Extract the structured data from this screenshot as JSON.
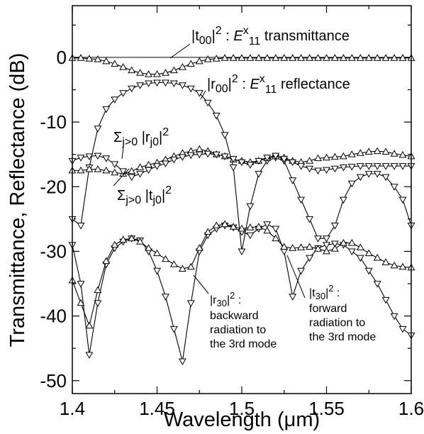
{
  "chart_data": {
    "type": "line",
    "xlabel": "Wavelength (μm)",
    "ylabel": "Transmittance, Reflectance (dB)",
    "xlim": [
      1.4,
      1.6
    ],
    "ylim": [
      -52,
      8
    ],
    "xticks": [
      "1.4",
      "1.45",
      "1.5",
      "1.55",
      "1.6"
    ],
    "yticks": [
      "0",
      "-10",
      "-20",
      "-30",
      "-40",
      "-50"
    ],
    "grid": false,
    "legend": "none",
    "series": [
      {
        "marker": "triangle-up",
        "x": [
          1.4,
          1.405,
          1.41,
          1.415,
          1.42,
          1.425,
          1.43,
          1.435,
          1.44,
          1.445,
          1.45,
          1.455,
          1.46,
          1.465,
          1.47,
          1.475,
          1.48,
          1.485,
          1.49,
          1.495,
          1.5,
          1.505,
          1.51,
          1.515,
          1.52,
          1.525,
          1.53,
          1.535,
          1.54,
          1.545,
          1.55,
          1.555,
          1.56,
          1.565,
          1.57,
          1.575,
          1.58,
          1.585,
          1.59,
          1.595,
          1.6
        ],
        "values": [
          -0.1,
          -0.1,
          -0.2,
          -0.3,
          -0.6,
          -1,
          -1.5,
          -2,
          -2.4,
          -2.6,
          -2.6,
          -2.4,
          -2,
          -1.5,
          -1,
          -0.6,
          -0.3,
          -0.2,
          -0.1,
          -0.1,
          -0.1,
          -0.1,
          -0.1,
          -0.1,
          -0.1,
          -0.1,
          -0.1,
          -0.1,
          -0.1,
          -0.1,
          -0.1,
          -0.1,
          -0.1,
          -0.1,
          -0.1,
          -0.1,
          -0.1,
          -0.1,
          -0.1,
          -0.1,
          -0.1
        ]
      },
      {
        "marker": "triangle-down",
        "x": [
          1.4,
          1.405,
          1.41,
          1.415,
          1.42,
          1.425,
          1.43,
          1.435,
          1.44,
          1.445,
          1.45,
          1.455,
          1.46,
          1.465,
          1.47,
          1.475,
          1.48,
          1.485,
          1.49,
          1.495,
          1.5,
          1.505,
          1.51,
          1.515,
          1.52,
          1.525,
          1.53,
          1.535,
          1.54,
          1.545,
          1.55,
          1.555,
          1.56,
          1.565,
          1.57,
          1.575,
          1.58,
          1.585,
          1.59,
          1.595,
          1.6
        ],
        "values": [
          -25,
          -26,
          -17,
          -11,
          -8,
          -6.5,
          -5.5,
          -4.8,
          -4.3,
          -4,
          -3.9,
          -3.9,
          -4,
          -4.3,
          -4.8,
          -5.5,
          -7,
          -9,
          -12,
          -17,
          -30,
          -23,
          -18,
          -16,
          -15.5,
          -16,
          -19,
          -22,
          -25,
          -28,
          -28,
          -26,
          -22,
          -19.5,
          -18.5,
          -18,
          -18,
          -18.5,
          -20,
          -22,
          -26
        ]
      },
      {
        "marker": "triangle-up",
        "x": [
          1.4,
          1.405,
          1.41,
          1.415,
          1.42,
          1.425,
          1.43,
          1.435,
          1.44,
          1.445,
          1.45,
          1.455,
          1.46,
          1.465,
          1.47,
          1.475,
          1.48,
          1.485,
          1.49,
          1.495,
          1.5,
          1.505,
          1.51,
          1.515,
          1.52,
          1.525,
          1.53,
          1.535,
          1.54,
          1.545,
          1.55,
          1.555,
          1.56,
          1.565,
          1.57,
          1.575,
          1.58,
          1.585,
          1.59,
          1.595,
          1.6
        ],
        "values": [
          -17.5,
          -17.5,
          -17.3,
          -17.3,
          -17.5,
          -17.8,
          -18,
          -17.6,
          -17,
          -16.6,
          -16.3,
          -15.8,
          -15.3,
          -14.8,
          -14.5,
          -14.2,
          -14.5,
          -15,
          -15.3,
          -15.8,
          -16,
          -16.2,
          -16,
          -15.6,
          -15.3,
          -15.5,
          -16,
          -16.2,
          -16,
          -15.6,
          -15.5,
          -15.4,
          -15.3,
          -15,
          -14.8,
          -14.6,
          -14.5,
          -14.6,
          -14.9,
          -15.1,
          -15.3
        ]
      },
      {
        "marker": "triangle-down",
        "x": [
          1.4,
          1.405,
          1.41,
          1.415,
          1.42,
          1.425,
          1.43,
          1.435,
          1.44,
          1.445,
          1.45,
          1.455,
          1.46,
          1.465,
          1.47,
          1.475,
          1.48,
          1.485,
          1.49,
          1.495,
          1.5,
          1.505,
          1.51,
          1.515,
          1.52,
          1.525,
          1.53,
          1.535,
          1.54,
          1.545,
          1.55,
          1.555,
          1.56,
          1.565,
          1.57,
          1.575,
          1.58,
          1.585,
          1.59,
          1.595,
          1.6
        ],
        "values": [
          -16,
          -15.5,
          -15.3,
          -15.2,
          -15.6,
          -16.5,
          -17.6,
          -18.5,
          -18,
          -17.4,
          -16.8,
          -16.4,
          -15.8,
          -15.4,
          -15.1,
          -15,
          -14.9,
          -15,
          -15.3,
          -15.7,
          -16.2,
          -16.6,
          -16,
          -15.5,
          -15.2,
          -15.7,
          -16.2,
          -16.8,
          -17.2,
          -17.5,
          -17.4,
          -17.2,
          -17,
          -16.9,
          -16.8,
          -16.8,
          -16.8,
          -16.8,
          -16.8,
          -16.8,
          -16.8
        ]
      },
      {
        "marker": "triangle-down",
        "x": [
          1.4,
          1.405,
          1.41,
          1.415,
          1.42,
          1.425,
          1.43,
          1.435,
          1.44,
          1.445,
          1.45,
          1.455,
          1.46,
          1.465,
          1.47,
          1.475,
          1.48,
          1.485,
          1.49,
          1.495,
          1.5,
          1.505,
          1.51,
          1.515,
          1.52,
          1.525,
          1.53,
          1.535,
          1.54,
          1.545,
          1.55,
          1.555,
          1.56,
          1.565,
          1.57,
          1.575,
          1.58,
          1.585,
          1.59,
          1.595,
          1.6
        ],
        "values": [
          -29,
          -35,
          -46,
          -38,
          -32,
          -29.5,
          -28.5,
          -28,
          -28.3,
          -30,
          -33,
          -37,
          -42,
          -47,
          -38,
          -30,
          -27.5,
          -26.5,
          -26,
          -26.3,
          -27,
          -27.5,
          -26.5,
          -25.8,
          -26.5,
          -30,
          -37,
          -33,
          -31,
          -29.5,
          -29,
          -28.8,
          -29,
          -30,
          -31,
          -33,
          -35,
          -37.5,
          -40,
          -42,
          -43
        ]
      },
      {
        "marker": "triangle-up",
        "x": [
          1.4,
          1.405,
          1.41,
          1.415,
          1.42,
          1.425,
          1.43,
          1.435,
          1.44,
          1.445,
          1.45,
          1.455,
          1.46,
          1.465,
          1.47,
          1.475,
          1.48,
          1.485,
          1.49,
          1.495,
          1.5,
          1.505,
          1.51,
          1.515,
          1.52,
          1.525,
          1.53,
          1.535,
          1.54,
          1.545,
          1.55,
          1.555,
          1.56,
          1.565,
          1.57,
          1.575,
          1.58,
          1.585,
          1.59,
          1.595,
          1.6
        ],
        "values": [
          -34.5,
          -38,
          -41.5,
          -36,
          -31.5,
          -29,
          -28.2,
          -28,
          -28.5,
          -29.5,
          -30.3,
          -31.2,
          -32,
          -32.7,
          -32.4,
          -29.5,
          -27,
          -26,
          -25.8,
          -26.2,
          -26.5,
          -26.3,
          -26.2,
          -26.8,
          -28,
          -29.3,
          -29.5,
          -29.4,
          -29.3,
          -29.6,
          -30,
          -29.6,
          -28.7,
          -28.7,
          -29.4,
          -30.3,
          -31,
          -31.7,
          -32.2,
          -32.4,
          -32.5
        ]
      }
    ],
    "annotations": [
      {
        "text": "|t00|² : Ex11 transmittance"
      },
      {
        "text": "|r00|² : Ex11 reflectance"
      },
      {
        "text": "Σj>0 |rj0|²"
      },
      {
        "text": "Σj>0 |tj0|²"
      },
      {
        "text": "|r30|² : backward radiation to the 3rd mode"
      },
      {
        "text": "|t30|² : forward radiation to the 3rd mode"
      }
    ]
  },
  "labels": {
    "t00_sym": "|t",
    "t00_sub": "00",
    "t00_sep": "|",
    "t00_sup": "2",
    "t00_colon": " : ",
    "t00_E": "E",
    "t00_Esup": "x",
    "t00_Esub": "11",
    "t00_tail": " transmittance",
    "r00_sym": "|r",
    "r00_sub": "00",
    "r00_sep": "|",
    "r00_sup": "2",
    "r00_colon": " : ",
    "r00_E": "E",
    "r00_Esup": "x",
    "r00_Esub": "11",
    "r00_tail": " reflectance",
    "sumr_sigma": "Σ",
    "sumr_sub": "j>0",
    "sumr_body": " |r",
    "sumr_bodysub": "j0",
    "sumr_sep": "|",
    "sumr_sup": "2",
    "sumt_sigma": "Σ",
    "sumt_sub": "j>0",
    "sumt_body": " |t",
    "sumt_bodysub": "j0",
    "sumt_sep": "|",
    "sumt_sup": "2",
    "r30_sym": "|r",
    "r30_sub": "30",
    "r30_sep": "|",
    "r30_sup": "2",
    "r30_colon": " :",
    "r30_l2": "backward",
    "r30_l3": "radiation to",
    "r30_l4": "the 3rd mode",
    "t30_sym": "|t",
    "t30_sub": "30",
    "t30_sep": "|",
    "t30_sup": "2",
    "t30_colon": " :",
    "t30_l2": "forward",
    "t30_l3": "radiation to",
    "t30_l4": "the 3rd mode"
  }
}
